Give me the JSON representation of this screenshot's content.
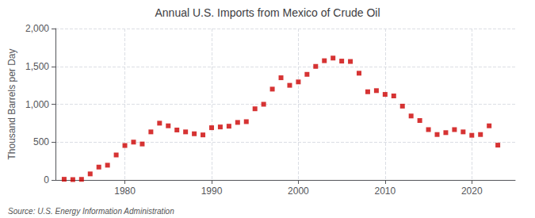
{
  "chart_data": {
    "type": "scatter",
    "title": "Annual U.S. Imports from Mexico of Crude Oil",
    "ylabel": "Thousand Barrels per Day",
    "annotations": [
      "Source: U.S. Energy Information Administration"
    ],
    "x": [
      1973,
      1974,
      1975,
      1976,
      1977,
      1978,
      1979,
      1980,
      1981,
      1982,
      1983,
      1984,
      1985,
      1986,
      1987,
      1988,
      1989,
      1990,
      1991,
      1992,
      1993,
      1994,
      1995,
      1996,
      1997,
      1998,
      1999,
      2000,
      2001,
      2002,
      2003,
      2004,
      2005,
      2006,
      2007,
      2008,
      2009,
      2010,
      2011,
      2012,
      2013,
      2014,
      2015,
      2016,
      2017,
      2018,
      2019,
      2020,
      2021,
      2022,
      2023
    ],
    "values": [
      9,
      5,
      8,
      80,
      170,
      195,
      330,
      455,
      500,
      475,
      635,
      750,
      715,
      660,
      635,
      610,
      595,
      690,
      700,
      710,
      760,
      770,
      940,
      1000,
      1200,
      1350,
      1250,
      1295,
      1395,
      1500,
      1575,
      1610,
      1570,
      1565,
      1410,
      1165,
      1180,
      1130,
      1110,
      975,
      845,
      785,
      665,
      600,
      625,
      665,
      635,
      590,
      600,
      715,
      460
    ],
    "color": "#cc0000",
    "marker": "square",
    "xlim": [
      1972,
      2025
    ],
    "xticks": [
      1980,
      1990,
      2000,
      2010,
      2020
    ],
    "ylim": [
      0,
      2000
    ],
    "yticks": [
      0,
      500,
      {
        "value": 1000,
        "label": "1,000"
      },
      {
        "value": 1500,
        "label": "1,500"
      },
      {
        "value": 2000,
        "label": "2,000"
      }
    ],
    "grid": true
  }
}
